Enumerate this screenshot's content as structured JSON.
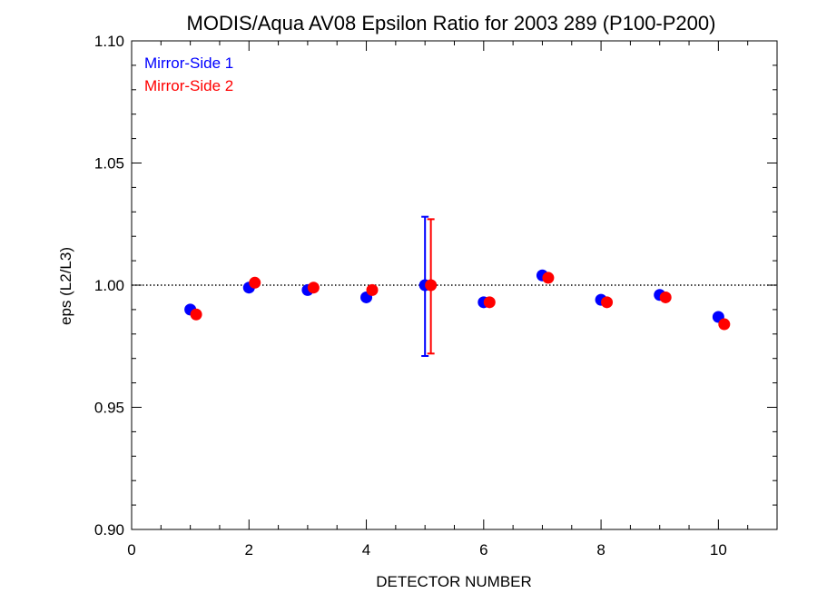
{
  "chart_data": {
    "type": "scatter",
    "title": "MODIS/Aqua AV08 Epsilon Ratio for 2003 289 (P100-P200)",
    "xlabel": "DETECTOR NUMBER",
    "ylabel": "eps (L2/L3)",
    "xlim": [
      0,
      11
    ],
    "ylim": [
      0.9,
      1.1
    ],
    "xticks": [
      0,
      2,
      4,
      6,
      8,
      10
    ],
    "xtick_labels": [
      "0",
      "2",
      "4",
      "6",
      "8",
      "10"
    ],
    "yticks": [
      0.9,
      0.95,
      1.0,
      1.05,
      1.1
    ],
    "ytick_labels": [
      "0.90",
      "0.95",
      "1.00",
      "1.05",
      "1.10"
    ],
    "reference_line": 1.0,
    "legend_position": "top-left",
    "series": [
      {
        "name": "Mirror-Side 1",
        "color": "#0000ff",
        "x": [
          1,
          2,
          3,
          4,
          5,
          6,
          7,
          8,
          9,
          10
        ],
        "y": [
          0.99,
          0.999,
          0.998,
          0.995,
          1.0,
          0.993,
          1.004,
          0.994,
          0.996,
          0.987
        ],
        "error_bars": [
          {
            "x": 5,
            "low": 0.971,
            "high": 1.028
          }
        ]
      },
      {
        "name": "Mirror-Side 2",
        "color": "#ff0000",
        "x": [
          1.1,
          2.1,
          3.1,
          4.1,
          5.1,
          6.1,
          7.1,
          8.1,
          9.1,
          10.1
        ],
        "y": [
          0.988,
          1.001,
          0.999,
          0.998,
          1.0,
          0.993,
          1.003,
          0.993,
          0.995,
          0.984
        ],
        "error_bars": [
          {
            "x": 5.1,
            "low": 0.972,
            "high": 1.027
          }
        ]
      }
    ]
  }
}
